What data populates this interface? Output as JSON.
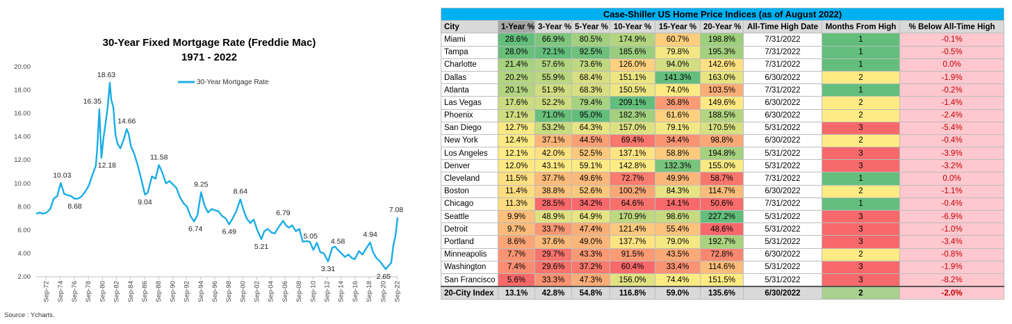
{
  "source_note": "Source : Ycharts.",
  "chart_data": {
    "type": "line",
    "title": "30-Year Fixed Mortgage Rate (Freddie Mac)",
    "subtitle": "1971 - 2022",
    "legend": [
      "30-Year Mortgage Rate"
    ],
    "legend_position": "top-right",
    "series_color": "#1aace6",
    "ylim": [
      2.0,
      20.0
    ],
    "yticks": [
      "2.00",
      "4.00",
      "6.00",
      "8.00",
      "10.00",
      "12.00",
      "14.00",
      "16.00",
      "18.00",
      "20.00"
    ],
    "xticks": [
      "Sep-72",
      "Sep-74",
      "Sep-76",
      "Sep-78",
      "Sep-80",
      "Sep-82",
      "Sep-84",
      "Sep-86",
      "Sep-88",
      "Sep-90",
      "Sep-92",
      "Sep-94",
      "Sep-96",
      "Sep-98",
      "Sep-00",
      "Sep-02",
      "Sep-04",
      "Sep-06",
      "Sep-08",
      "Sep-10",
      "Sep-12",
      "Sep-14",
      "Sep-16",
      "Sep-18",
      "Sep-20",
      "Sep-22"
    ],
    "grid": false,
    "x": [
      1971.3,
      1971.8,
      1972.3,
      1972.8,
      1973.3,
      1973.8,
      1974.3,
      1974.8,
      1975.3,
      1975.8,
      1976.3,
      1976.8,
      1977.3,
      1977.8,
      1978.3,
      1978.8,
      1979.3,
      1979.8,
      1980.0,
      1980.3,
      1980.6,
      1980.9,
      1981.2,
      1981.5,
      1981.8,
      1982.0,
      1982.3,
      1982.6,
      1982.9,
      1983.3,
      1983.8,
      1984.2,
      1984.5,
      1984.8,
      1985.3,
      1985.8,
      1986.3,
      1986.8,
      1987.2,
      1987.8,
      1988.3,
      1988.8,
      1989.3,
      1989.8,
      1990.3,
      1990.8,
      1991.3,
      1991.8,
      1992.3,
      1992.8,
      1993.3,
      1993.8,
      1994.3,
      1994.8,
      1995.3,
      1995.8,
      1996.3,
      1996.8,
      1997.3,
      1997.8,
      1998.3,
      1998.8,
      1999.3,
      1999.8,
      2000.4,
      2000.8,
      2001.3,
      2001.8,
      2002.3,
      2002.8,
      2003.4,
      2003.8,
      2004.3,
      2004.8,
      2005.3,
      2005.8,
      2006.5,
      2006.9,
      2007.3,
      2007.8,
      2008.3,
      2008.8,
      2009.3,
      2009.8,
      2010.3,
      2010.8,
      2011.3,
      2011.8,
      2012.3,
      2012.9,
      2013.5,
      2013.9,
      2014.3,
      2014.8,
      2015.3,
      2015.8,
      2016.3,
      2016.7,
      2017.3,
      2017.8,
      2018.4,
      2018.9,
      2019.3,
      2019.8,
      2020.3,
      2020.8,
      2021.1,
      2021.6,
      2021.9,
      2022.2,
      2022.5,
      2022.8
    ],
    "y": [
      7.4,
      7.5,
      7.4,
      7.5,
      7.8,
      8.7,
      8.9,
      10.03,
      9.1,
      9.0,
      8.9,
      8.68,
      8.7,
      8.9,
      9.3,
      9.8,
      10.7,
      11.5,
      12.9,
      16.35,
      12.18,
      13.9,
      15.2,
      16.6,
      18.63,
      17.2,
      16.5,
      14.2,
      13.4,
      13.0,
      13.8,
      14.66,
      14.2,
      13.2,
      12.5,
      11.5,
      10.3,
      9.04,
      9.2,
      10.6,
      10.4,
      11.58,
      10.9,
      10.0,
      10.2,
      9.9,
      9.6,
      8.8,
      8.3,
      8.0,
      7.2,
      6.74,
      7.3,
      9.25,
      8.1,
      7.5,
      7.8,
      7.7,
      7.6,
      7.2,
      7.0,
      6.49,
      7.0,
      7.6,
      8.64,
      7.8,
      7.0,
      6.6,
      6.9,
      6.0,
      5.21,
      5.9,
      6.1,
      5.8,
      5.7,
      6.2,
      6.79,
      6.4,
      6.2,
      6.4,
      5.9,
      6.1,
      5.0,
      5.05,
      5.0,
      4.3,
      4.9,
      4.1,
      4.0,
      3.31,
      4.5,
      4.58,
      4.3,
      4.0,
      3.7,
      3.9,
      3.6,
      3.5,
      4.2,
      3.9,
      4.5,
      4.94,
      4.1,
      3.6,
      3.3,
      2.9,
      2.65,
      3.0,
      3.2,
      4.7,
      5.5,
      7.08
    ],
    "annotations": [
      {
        "x": 1974.8,
        "y": 10.03,
        "label": "10.03"
      },
      {
        "x": 1976.8,
        "y": 8.68,
        "label": "8.68"
      },
      {
        "x": 1980.3,
        "y": 16.35,
        "label": "16.35"
      },
      {
        "x": 1980.6,
        "y": 12.18,
        "label": "12.18"
      },
      {
        "x": 1981.8,
        "y": 18.63,
        "label": "18.63"
      },
      {
        "x": 1984.2,
        "y": 14.66,
        "label": "14.66"
      },
      {
        "x": 1986.8,
        "y": 9.04,
        "label": "9.04"
      },
      {
        "x": 1988.8,
        "y": 11.58,
        "label": "11.58"
      },
      {
        "x": 1993.8,
        "y": 6.74,
        "label": "6.74"
      },
      {
        "x": 1994.8,
        "y": 9.25,
        "label": "9.25"
      },
      {
        "x": 1998.8,
        "y": 6.49,
        "label": "6.49"
      },
      {
        "x": 2000.4,
        "y": 8.64,
        "label": "8.64"
      },
      {
        "x": 2003.4,
        "y": 5.21,
        "label": "5.21"
      },
      {
        "x": 2006.5,
        "y": 6.79,
        "label": "6.79"
      },
      {
        "x": 2009.8,
        "y": 5.05,
        "label": "5.05"
      },
      {
        "x": 2012.9,
        "y": 3.31,
        "label": "3.31"
      },
      {
        "x": 2013.9,
        "y": 4.58,
        "label": "4.58"
      },
      {
        "x": 2018.9,
        "y": 4.94,
        "label": "4.94"
      },
      {
        "x": 2020.8,
        "y": 2.65,
        "label": "2.65"
      },
      {
        "x": 2022.8,
        "y": 7.08,
        "label": "7.08"
      }
    ]
  },
  "table": {
    "title": "Case-Shiller US Home Price Indices (as of August 2022)",
    "headers": [
      "City",
      "1-Year %",
      "3-Year %",
      "5-Year %",
      "10-Year %",
      "15-Year %",
      "20-Year %",
      "All-Time High Date",
      "Months From High",
      "% Below All-Time High"
    ],
    "rows": [
      {
        "city": "Miami",
        "y1": "28.6%",
        "y3": "66.9%",
        "y5": "80.5%",
        "y10": "174.9%",
        "y15": "60.7%",
        "y20": "198.8%",
        "ath": "7/31/2022",
        "mfh": "1",
        "pct": "-0.1%"
      },
      {
        "city": "Tampa",
        "y1": "28.0%",
        "y3": "72.1%",
        "y5": "92.5%",
        "y10": "185.6%",
        "y15": "79.8%",
        "y20": "195.3%",
        "ath": "7/31/2022",
        "mfh": "1",
        "pct": "-0.5%"
      },
      {
        "city": "Charlotte",
        "y1": "21.4%",
        "y3": "57.6%",
        "y5": "73.6%",
        "y10": "126.0%",
        "y15": "94.0%",
        "y20": "142.6%",
        "ath": "7/31/2022",
        "mfh": "1",
        "pct": "0.0%"
      },
      {
        "city": "Dallas",
        "y1": "20.2%",
        "y3": "55.9%",
        "y5": "68.4%",
        "y10": "151.1%",
        "y15": "141.3%",
        "y20": "163.0%",
        "ath": "6/30/2022",
        "mfh": "2",
        "pct": "-1.9%"
      },
      {
        "city": "Atlanta",
        "y1": "20.1%",
        "y3": "51.9%",
        "y5": "68.3%",
        "y10": "150.5%",
        "y15": "74.0%",
        "y20": "103.5%",
        "ath": "7/31/2022",
        "mfh": "1",
        "pct": "-0.2%"
      },
      {
        "city": "Las Vegas",
        "y1": "17.6%",
        "y3": "52.2%",
        "y5": "79.4%",
        "y10": "209.1%",
        "y15": "36.8%",
        "y20": "149.6%",
        "ath": "6/30/2022",
        "mfh": "2",
        "pct": "-1.4%"
      },
      {
        "city": "Phoenix",
        "y1": "17.1%",
        "y3": "71.0%",
        "y5": "95.0%",
        "y10": "182.3%",
        "y15": "61.6%",
        "y20": "188.5%",
        "ath": "6/30/2022",
        "mfh": "2",
        "pct": "-2.4%"
      },
      {
        "city": "San Diego",
        "y1": "12.7%",
        "y3": "53.2%",
        "y5": "64.3%",
        "y10": "157.0%",
        "y15": "79.1%",
        "y20": "170.5%",
        "ath": "5/31/2022",
        "mfh": "3",
        "pct": "-5.4%"
      },
      {
        "city": "New York",
        "y1": "12.4%",
        "y3": "37.1%",
        "y5": "44.5%",
        "y10": "69.4%",
        "y15": "34.4%",
        "y20": "98.8%",
        "ath": "6/30/2022",
        "mfh": "2",
        "pct": "-0.4%"
      },
      {
        "city": "Los Angeles",
        "y1": "12.1%",
        "y3": "42.0%",
        "y5": "52.5%",
        "y10": "137.1%",
        "y15": "58.8%",
        "y20": "194.8%",
        "ath": "5/31/2022",
        "mfh": "3",
        "pct": "-3.9%"
      },
      {
        "city": "Denver",
        "y1": "12.0%",
        "y3": "43.1%",
        "y5": "59.1%",
        "y10": "142.8%",
        "y15": "132.3%",
        "y20": "155.0%",
        "ath": "5/31/2022",
        "mfh": "3",
        "pct": "-3.2%"
      },
      {
        "city": "Cleveland",
        "y1": "11.5%",
        "y3": "37.7%",
        "y5": "49.6%",
        "y10": "72.7%",
        "y15": "49.9%",
        "y20": "58.7%",
        "ath": "7/31/2022",
        "mfh": "1",
        "pct": "0.0%"
      },
      {
        "city": "Boston",
        "y1": "11.4%",
        "y3": "38.8%",
        "y5": "52.6%",
        "y10": "100.2%",
        "y15": "84.3%",
        "y20": "114.7%",
        "ath": "6/30/2022",
        "mfh": "2",
        "pct": "-1.1%"
      },
      {
        "city": "Chicago",
        "y1": "11.3%",
        "y3": "28.5%",
        "y5": "34.2%",
        "y10": "64.6%",
        "y15": "14.1%",
        "y20": "50.6%",
        "ath": "7/31/2022",
        "mfh": "1",
        "pct": "-0.4%"
      },
      {
        "city": "Seattle",
        "y1": "9.9%",
        "y3": "48.9%",
        "y5": "64.9%",
        "y10": "170.9%",
        "y15": "98.6%",
        "y20": "227.2%",
        "ath": "5/31/2022",
        "mfh": "3",
        "pct": "-6.9%"
      },
      {
        "city": "Detroit",
        "y1": "9.7%",
        "y3": "33.7%",
        "y5": "47.4%",
        "y10": "121.4%",
        "y15": "55.4%",
        "y20": "48.6%",
        "ath": "5/31/2022",
        "mfh": "3",
        "pct": "-1.0%"
      },
      {
        "city": "Portland",
        "y1": "8.6%",
        "y3": "37.6%",
        "y5": "49.0%",
        "y10": "137.7%",
        "y15": "79.0%",
        "y20": "192.7%",
        "ath": "5/31/2022",
        "mfh": "3",
        "pct": "-3.4%"
      },
      {
        "city": "Minneapolis",
        "y1": "7.7%",
        "y3": "29.7%",
        "y5": "43.3%",
        "y10": "91.5%",
        "y15": "43.5%",
        "y20": "72.8%",
        "ath": "6/30/2022",
        "mfh": "2",
        "pct": "-0.8%"
      },
      {
        "city": "Washington",
        "y1": "7.4%",
        "y3": "29.6%",
        "y5": "37.2%",
        "y10": "60.4%",
        "y15": "33.4%",
        "y20": "114.6%",
        "ath": "5/31/2022",
        "mfh": "3",
        "pct": "-1.9%"
      },
      {
        "city": "San Francisco",
        "y1": "5.6%",
        "y3": "33.3%",
        "y5": "47.3%",
        "y10": "156.0%",
        "y15": "74.4%",
        "y20": "151.5%",
        "ath": "5/31/2022",
        "mfh": "3",
        "pct": "-8.2%"
      }
    ],
    "total": {
      "city": "20-City Index",
      "y1": "13.1%",
      "y3": "42.8%",
      "y5": "54.8%",
      "y10": "116.8%",
      "y15": "59.0%",
      "y20": "135.6%",
      "ath": "6/30/2022",
      "mfh": "2",
      "pct": "-2.0%"
    }
  }
}
